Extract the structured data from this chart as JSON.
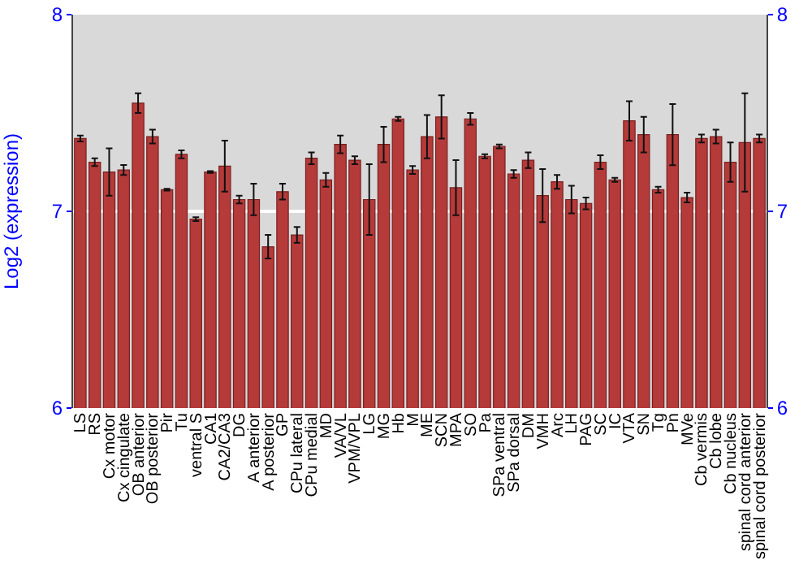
{
  "chart_data": {
    "type": "bar",
    "ylabel": "Log2 (expression)",
    "categories": [
      "LS",
      "RS",
      "Cx motor",
      "Cx cingulate",
      "OB anterior",
      "OB posterior",
      "Pir",
      "Tu",
      "ventral S",
      "CA1",
      "CA2/CA3",
      "DG",
      "A anterior",
      "A posterior",
      "GP",
      "CPu lateral",
      "CPu medial",
      "MD",
      "VA/VL",
      "VPM/VPL",
      "LG",
      "MG",
      "Hb",
      "M",
      "ME",
      "SCN",
      "MPA",
      "SO",
      "Pa",
      "SPa ventral",
      "SPa dorsal",
      "DM",
      "VMH",
      "Arc",
      "LH",
      "PAG",
      "SC",
      "IC",
      "VTA",
      "SN",
      "Tg",
      "Pn",
      "MVe",
      "Cb vermis",
      "Cb lobe",
      "Cb nucleus",
      "spinal cord anterior",
      "spinal cord posterior"
    ],
    "values": [
      7.37,
      7.25,
      7.2,
      7.21,
      7.55,
      7.38,
      7.11,
      7.29,
      6.96,
      7.2,
      7.23,
      7.06,
      7.06,
      6.82,
      7.1,
      6.88,
      7.27,
      7.16,
      7.34,
      7.26,
      7.06,
      7.34,
      7.47,
      7.21,
      7.38,
      7.48,
      7.12,
      7.47,
      7.28,
      7.33,
      7.19,
      7.26,
      7.08,
      7.15,
      7.06,
      7.04,
      7.25,
      7.16,
      7.46,
      7.39,
      7.11,
      7.39,
      7.07,
      7.37,
      7.38,
      7.25,
      7.35,
      7.37
    ],
    "errors": [
      0.015,
      0.02,
      0.12,
      0.025,
      0.05,
      0.035,
      0.005,
      0.02,
      0.01,
      0.005,
      0.13,
      0.02,
      0.08,
      0.06,
      0.04,
      0.04,
      0.03,
      0.035,
      0.045,
      0.02,
      0.18,
      0.09,
      0.01,
      0.02,
      0.11,
      0.11,
      0.14,
      0.03,
      0.01,
      0.01,
      0.02,
      0.04,
      0.135,
      0.035,
      0.07,
      0.03,
      0.035,
      0.01,
      0.1,
      0.09,
      0.015,
      0.155,
      0.025,
      0.02,
      0.035,
      0.1,
      0.25,
      0.02
    ],
    "color": "#b53a3a",
    "ylim": [
      6,
      8
    ],
    "yticks": [
      6,
      7,
      8
    ],
    "y2lim": [
      6,
      8
    ],
    "y2ticks": [
      6,
      7,
      8
    ],
    "grid": "y"
  }
}
